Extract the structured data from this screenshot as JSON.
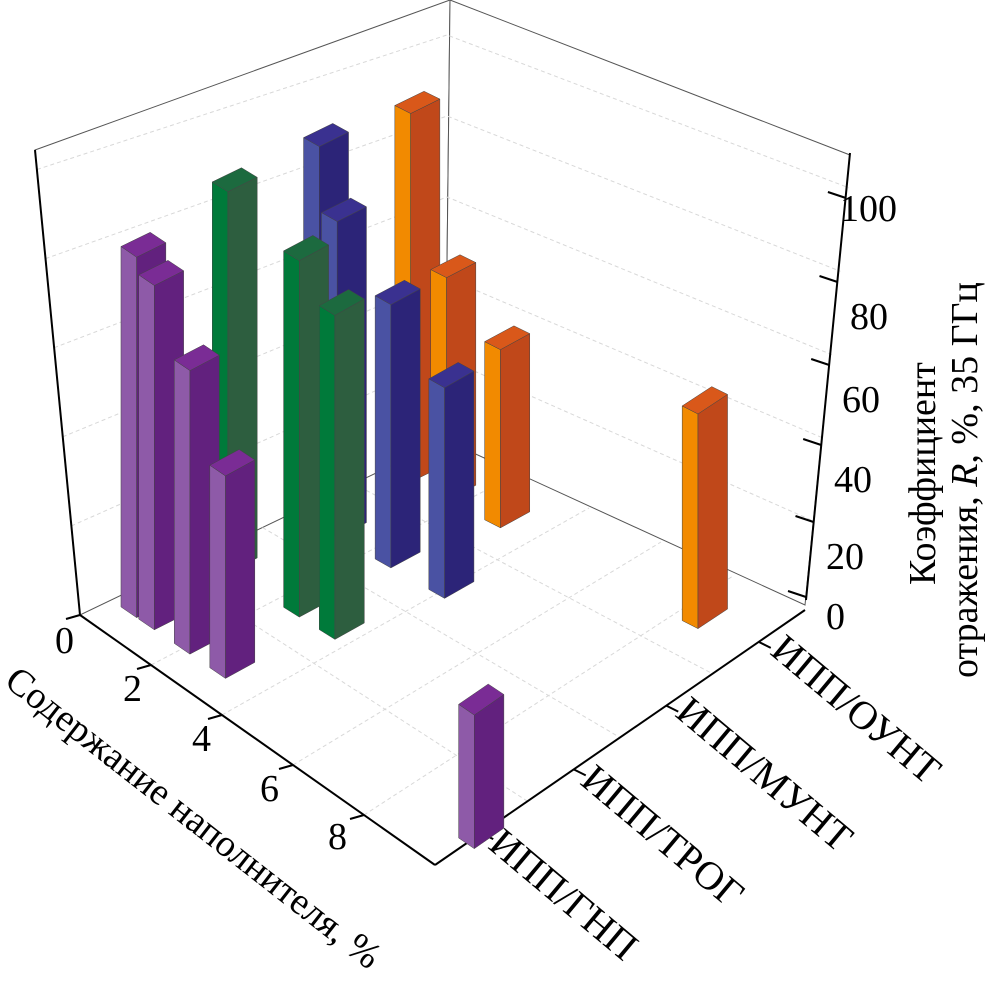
{
  "chart_data": {
    "type": "bar",
    "subtype": "3d-bar",
    "x_axis": {
      "label": "Содержание наполнителя, %",
      "ticks": [
        "0",
        "2",
        "4",
        "6",
        "8"
      ],
      "range": [
        0,
        10
      ]
    },
    "category_axis": {
      "ticks": [
        "ИПП/ГНП",
        "ИПП/ТРОГ",
        "ИПП/МУНТ",
        "ИПП/ОУНТ"
      ]
    },
    "z_axis": {
      "label_line1": "Коэффициент",
      "label_line2_pre": "отражения, ",
      "label_line2_italic": "R",
      "label_line2_post": ", %, 35 ГГц",
      "ticks": [
        "0",
        "20",
        "40",
        "60",
        "80",
        "100"
      ],
      "range": [
        0,
        110
      ]
    },
    "grid": true,
    "series": [
      {
        "name": "ИПП/ГНП",
        "color_light": "#8e5aa8",
        "color_dark": "#62217e",
        "color_top": "#7a2c95",
        "x": [
          0.5,
          1,
          2,
          3,
          10
        ],
        "values": [
          89,
          85,
          70,
          50,
          33
        ]
      },
      {
        "name": "ИПП/ТРОГ",
        "color_light": "#007a3a",
        "color_dark": "#2d5e3f",
        "color_top": "#1c6a3f",
        "x": [
          0.5,
          2.5,
          3.5
        ],
        "values": [
          94,
          88,
          80
        ]
      },
      {
        "name": "ИПП/МУНТ",
        "color_light": "#4a52a3",
        "color_dark": "#2c2478",
        "color_top": "#3a3190",
        "x": [
          0.5,
          1,
          2.5,
          4
        ],
        "values": [
          94,
          78,
          65,
          52
        ]
      },
      {
        "name": "ИПП/ОУНТ",
        "color_light": "#f28a00",
        "color_dark": "#c0481a",
        "color_top": "#d9581a",
        "x": [
          0.5,
          1.5,
          3,
          8.5
        ],
        "values": [
          91,
          55,
          44,
          53
        ]
      }
    ]
  }
}
